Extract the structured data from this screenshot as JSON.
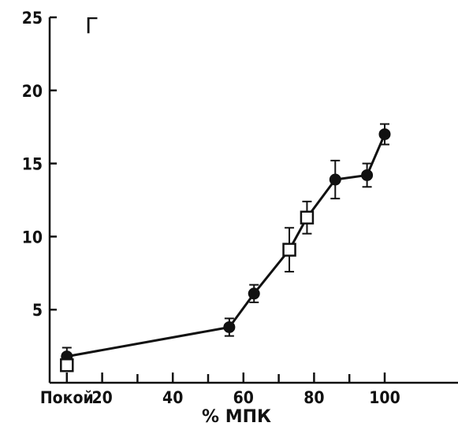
{
  "panel_label": "Г",
  "chart_data": {
    "type": "line",
    "xlabel": "% МПК",
    "ylabel": "",
    "xlim": [
      0,
      120
    ],
    "ylim": [
      0,
      25
    ],
    "x_tick_labels": [
      {
        "value": 10,
        "label": "Покой"
      },
      {
        "value": 20,
        "label": "20"
      },
      {
        "value": 40,
        "label": "40"
      },
      {
        "value": 60,
        "label": "60"
      },
      {
        "value": 80,
        "label": "80"
      },
      {
        "value": 100,
        "label": "100"
      }
    ],
    "x_minor_ticks": [
      30,
      50,
      70,
      90
    ],
    "y_tick_labels": [
      {
        "value": 5,
        "label": "5"
      },
      {
        "value": 10,
        "label": "10"
      },
      {
        "value": 15,
        "label": "15"
      },
      {
        "value": 20,
        "label": "20"
      },
      {
        "value": 25,
        "label": "25"
      }
    ],
    "line": {
      "x": [
        10,
        56,
        63,
        73,
        78,
        86,
        95,
        100
      ],
      "y": [
        1.8,
        3.8,
        6.1,
        9.1,
        11.3,
        13.9,
        14.2,
        17.0
      ]
    },
    "series": [
      {
        "marker": "filled-circle",
        "points": [
          {
            "x": 10,
            "y": 1.8,
            "err": 0.6
          },
          {
            "x": 56,
            "y": 3.8,
            "err": 0.6
          },
          {
            "x": 63,
            "y": 6.1,
            "err": 0.6
          },
          {
            "x": 86,
            "y": 13.9,
            "err": 1.3
          },
          {
            "x": 95,
            "y": 14.2,
            "err": 0.8
          },
          {
            "x": 100,
            "y": 17.0,
            "err": 0.7
          }
        ]
      },
      {
        "marker": "open-square",
        "points": [
          {
            "x": 10,
            "y": 1.2,
            "err": 0
          },
          {
            "x": 73,
            "y": 9.1,
            "err": 1.5
          },
          {
            "x": 78,
            "y": 11.3,
            "err": 1.1
          }
        ]
      }
    ],
    "grid": false,
    "legend": "none"
  }
}
